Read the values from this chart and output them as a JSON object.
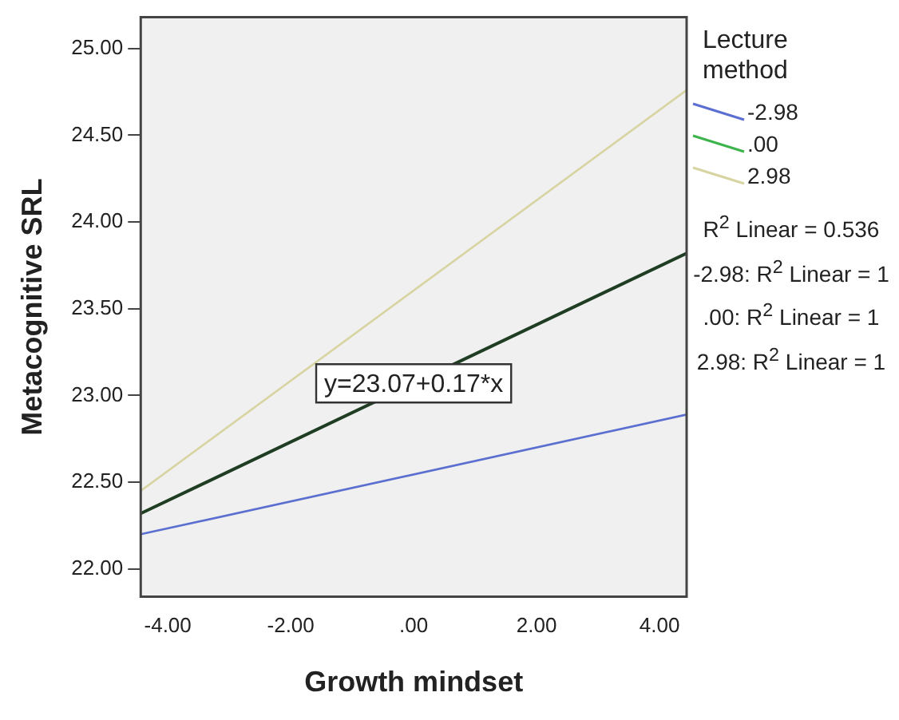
{
  "chart_data": {
    "type": "line",
    "xlabel": "Growth mindset",
    "ylabel": "Metacognitive SRL",
    "legend_title": "Lecture method",
    "legend": "right",
    "grid": false,
    "marker": "none",
    "line_style": "solid",
    "xlim": [
      -4.44,
      4.44
    ],
    "xticks": [
      {
        "value": -4,
        "label": "-4.00"
      },
      {
        "value": -2,
        "label": "-2.00"
      },
      {
        "value": 0,
        "label": ".00"
      },
      {
        "value": 2,
        "label": "2.00"
      },
      {
        "value": 4,
        "label": "4.00"
      }
    ],
    "ylim": [
      21.84,
      25.18
    ],
    "yticks": [
      {
        "value": 22,
        "label": "22.00"
      },
      {
        "value": 22.5,
        "label": "22.50"
      },
      {
        "value": 23,
        "label": "23.00"
      },
      {
        "value": 23.5,
        "label": "23.50"
      },
      {
        "value": 24,
        "label": "24.00"
      },
      {
        "value": 24.5,
        "label": "24.50"
      },
      {
        "value": 25,
        "label": "25.00"
      }
    ],
    "x": [
      -4.44,
      4.44
    ],
    "series": [
      {
        "name": "-2.98",
        "color": "#5b6fd0",
        "values": [
          22.2,
          22.89
        ]
      },
      {
        "name": ".00",
        "color": "#3cb44b",
        "values": [
          null,
          null
        ]
      },
      {
        "name": "2.98",
        "color": "#d8d4a2",
        "values": [
          22.45,
          24.76
        ]
      },
      {
        "color": "#1f3d22",
        "values": [
          22.32,
          23.82
        ]
      }
    ],
    "annotations": [
      {
        "text": "y=23.07+0.17*x",
        "x": 0,
        "y": 23.07
      },
      "R$^{2}$ Linear = 0.536",
      "-2.98: R$^{2}$ Linear = 1",
      ".00: R$^{2}$ Linear = 1",
      "2.98: R$^{2}$ Linear = 1"
    ]
  }
}
